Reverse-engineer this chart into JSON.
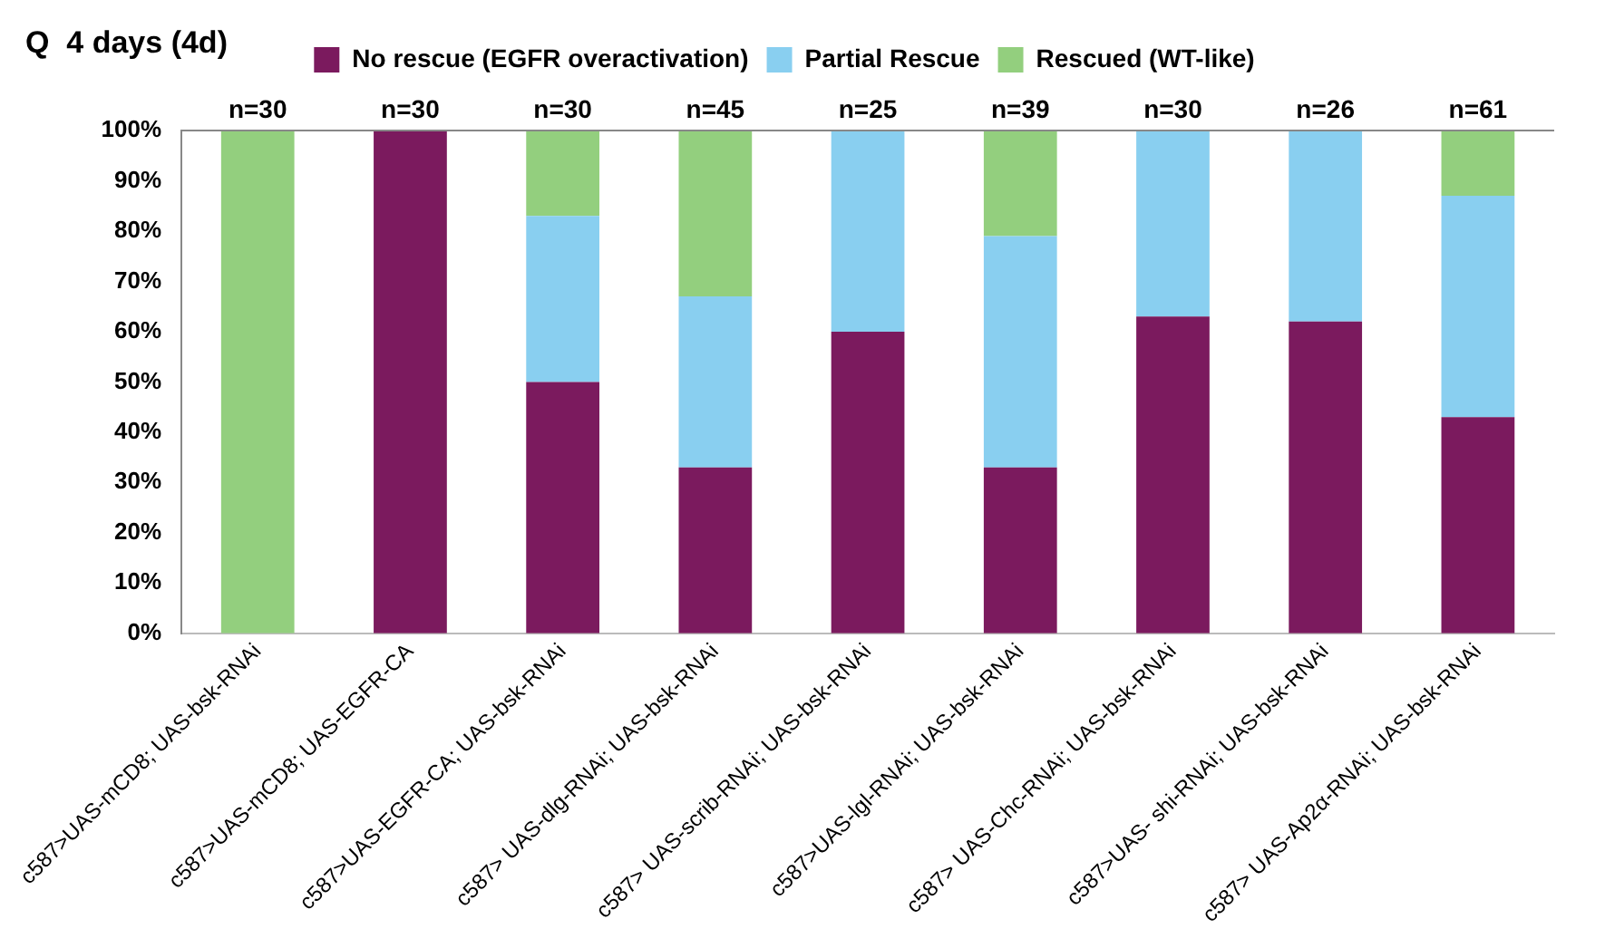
{
  "chart_data": {
    "type": "bar",
    "title": "Q  4 days (4d)",
    "stacked": true,
    "categories": [
      "c587>UAS-mCD8; UAS-bsk-RNAi",
      "c587>UAS-mCD8; UAS-EGFR-CA",
      "c587>UAS-EGFR-CA; UAS-bsk-RNAi",
      "c587> UAS-dlg-RNAi; UAS-bsk-RNAi",
      "c587> UAS-scrib-RNAi; UAS-bsk-RNAi",
      "c587>UAS-lgl-RNAi; UAS-bsk-RNAi",
      "c587> UAS-Chc-RNAi; UAS-bsk-RNAi",
      "c587>UAS- shi-RNAi; UAS-bsk-RNAi",
      "c587> UAS-Ap2α-RNAi; UAS-bsk-RNAi"
    ],
    "series": [
      {
        "name": "No rescue (EGFR overactivation)",
        "color": "#7b1a5e",
        "values": [
          0,
          100,
          50,
          33,
          60,
          33,
          63,
          62,
          43
        ]
      },
      {
        "name": "Partial Rescue",
        "color": "#89cff0",
        "values": [
          0,
          0,
          33,
          34,
          40,
          46,
          37,
          38,
          44
        ]
      },
      {
        "name": "Rescued (WT-like)",
        "color": "#93cf7e",
        "values": [
          100,
          0,
          17,
          33,
          0,
          21,
          0,
          0,
          13
        ]
      }
    ],
    "ylim": [
      0,
      100
    ],
    "yticks": [
      {
        "value": 0,
        "label": "0%"
      },
      {
        "value": 10,
        "label": "10%"
      },
      {
        "value": 20,
        "label": "20%"
      },
      {
        "value": 30,
        "label": "30%"
      },
      {
        "value": 40,
        "label": "40%"
      },
      {
        "value": 50,
        "label": "50%"
      },
      {
        "value": 60,
        "label": "60%"
      },
      {
        "value": 70,
        "label": "70%"
      },
      {
        "value": 80,
        "label": "80%"
      },
      {
        "value": 90,
        "label": "90%"
      },
      {
        "value": 100,
        "label": "100%"
      }
    ],
    "annotations": [
      {
        "text": "n=30",
        "x": "c587>UAS-mCD8; UAS-bsk-RNAi",
        "y": 100
      },
      {
        "text": "n=30",
        "x": "c587>UAS-mCD8; UAS-EGFR-CA",
        "y": 100
      },
      {
        "text": "n=30",
        "x": "c587>UAS-EGFR-CA; UAS-bsk-RNAi",
        "y": 100
      },
      {
        "text": "n=45",
        "x": "c587> UAS-dlg-RNAi; UAS-bsk-RNAi",
        "y": 100
      },
      {
        "text": "n=25",
        "x": "c587> UAS-scrib-RNAi; UAS-bsk-RNAi",
        "y": 100
      },
      {
        "text": "n=39",
        "x": "c587>UAS-lgl-RNAi; UAS-bsk-RNAi",
        "y": 100
      },
      {
        "text": "n=30",
        "x": "c587> UAS-Chc-RNAi; UAS-bsk-RNAi",
        "y": 100
      },
      {
        "text": "n=26",
        "x": "c587>UAS- shi-RNAi; UAS-bsk-RNAi",
        "y": 100
      },
      {
        "text": "n=61",
        "x": "c587> UAS-Ap2α-RNAi; UAS-bsk-RNAi",
        "y": 100
      }
    ],
    "legend": "top",
    "grid": false
  }
}
